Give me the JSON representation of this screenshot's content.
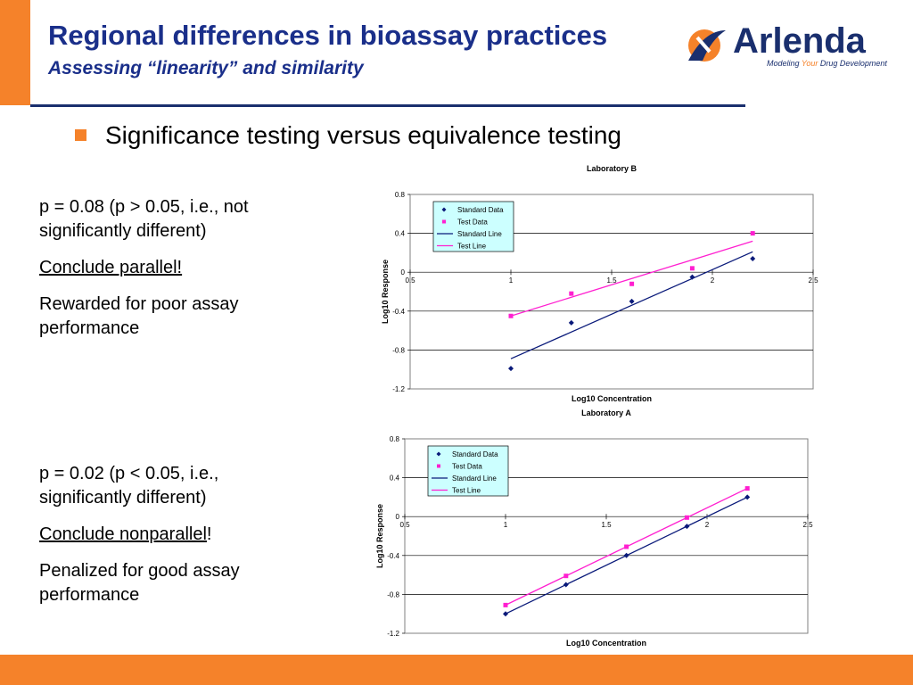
{
  "colors": {
    "orange": "#f5822a",
    "navy": "#1a2f8a",
    "rule": "#1a2f6e",
    "standard": "#0a1a7a",
    "test": "#ff1fd0",
    "legend_bg": "#ccffff"
  },
  "header": {
    "title": "Regional differences in bioassay practices",
    "subtitle": "Assessing “linearity” and similarity"
  },
  "logo": {
    "name": "Arlenda",
    "tagline_pre": "Modeling ",
    "tagline_your": "Your",
    "tagline_post": " Drug Development"
  },
  "bullet": {
    "text": "Significance testing versus equivalence testing"
  },
  "block_b": {
    "line1": "p = 0.08 (p > 0.05, i.e., not significantly different)",
    "line2": "Conclude parallel!",
    "line3": "Rewarded for poor assay performance"
  },
  "block_a": {
    "line1": "p = 0.02 (p < 0.05, i.e., significantly different)",
    "line2": "Conclude nonparallel",
    "line2_suffix": "!",
    "line3": "Penalized for good assay performance"
  },
  "chart_data": [
    {
      "type": "scatter",
      "title": "Laboratory B",
      "xlabel": "Log10 Concentration",
      "ylabel": "Log10 Response",
      "xlim": [
        0.5,
        2.5
      ],
      "ylim": [
        -1.2,
        0.8
      ],
      "xticks": [
        "0.5",
        "1",
        "1.5",
        "2",
        "2.5"
      ],
      "yticks": [
        "-1.2",
        "-0.8",
        "-0.4",
        "0",
        "0.4",
        "0.8"
      ],
      "grid": true,
      "legend_position": "top-left",
      "series": [
        {
          "name": "Standard Data",
          "kind": "points",
          "marker": "diamond",
          "x": [
            1.0,
            1.3,
            1.6,
            1.9,
            2.2
          ],
          "y": [
            -0.99,
            -0.52,
            -0.3,
            -0.05,
            0.14
          ]
        },
        {
          "name": "Test Data",
          "kind": "points",
          "marker": "square",
          "x": [
            1.0,
            1.3,
            1.6,
            1.9,
            2.2
          ],
          "y": [
            -0.45,
            -0.22,
            -0.12,
            0.04,
            0.4
          ]
        },
        {
          "name": "Standard Line",
          "kind": "line",
          "x": [
            1.0,
            2.2
          ],
          "y": [
            -0.89,
            0.21
          ]
        },
        {
          "name": "Test Line",
          "kind": "line",
          "x": [
            1.0,
            2.2
          ],
          "y": [
            -0.45,
            0.32
          ]
        }
      ]
    },
    {
      "type": "scatter",
      "title": "Laboratory A",
      "xlabel": "Log10 Concentration",
      "ylabel": "Log10 Response",
      "xlim": [
        0.5,
        2.5
      ],
      "ylim": [
        -1.2,
        0.8
      ],
      "xticks": [
        "0.5",
        "1",
        "1.5",
        "2",
        "2.5"
      ],
      "yticks": [
        "-1.2",
        "-0.8",
        "-0.4",
        "0",
        "0.4",
        "0.8"
      ],
      "grid": true,
      "legend_position": "top-left",
      "series": [
        {
          "name": "Standard Data",
          "kind": "points",
          "marker": "diamond",
          "x": [
            1.0,
            1.3,
            1.6,
            1.9,
            2.2
          ],
          "y": [
            -1.0,
            -0.7,
            -0.4,
            -0.1,
            0.2
          ]
        },
        {
          "name": "Test Data",
          "kind": "points",
          "marker": "square",
          "x": [
            1.0,
            1.3,
            1.6,
            1.9,
            2.2
          ],
          "y": [
            -0.91,
            -0.61,
            -0.31,
            -0.01,
            0.29
          ]
        },
        {
          "name": "Standard Line",
          "kind": "line",
          "x": [
            1.0,
            2.2
          ],
          "y": [
            -1.0,
            0.2
          ]
        },
        {
          "name": "Test Line",
          "kind": "line",
          "x": [
            1.0,
            2.2
          ],
          "y": [
            -0.91,
            0.29
          ]
        }
      ]
    }
  ]
}
